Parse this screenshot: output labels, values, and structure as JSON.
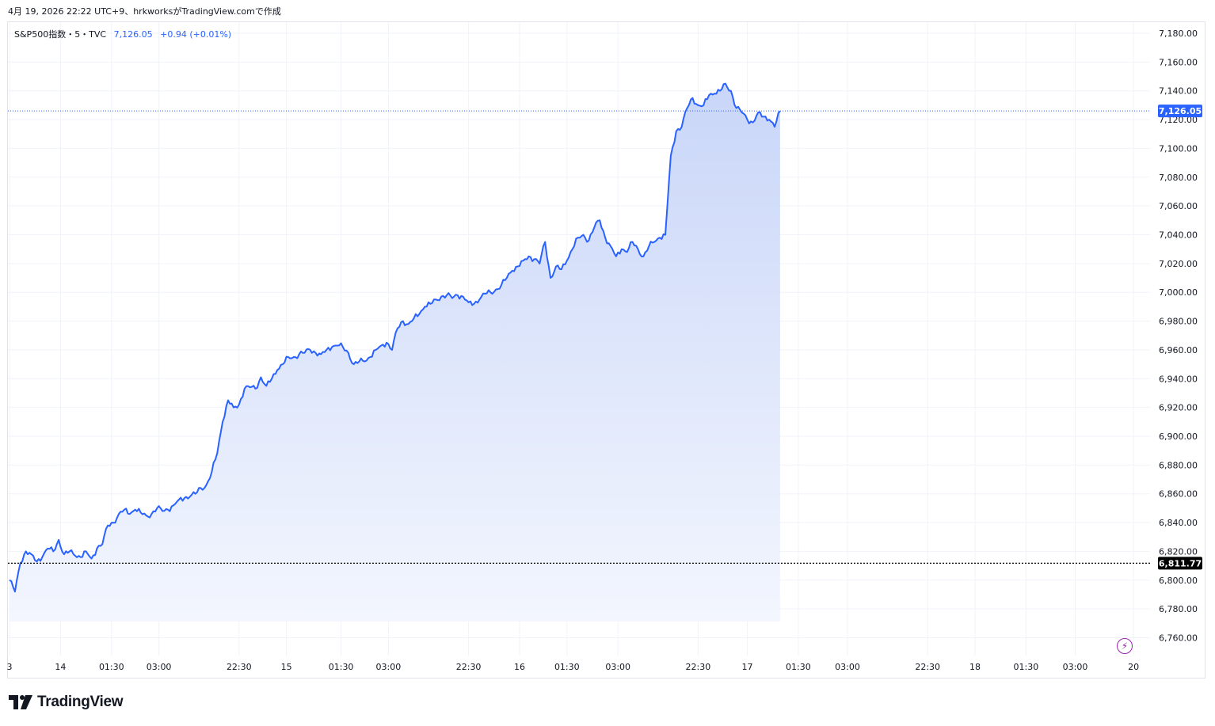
{
  "caption": "4月 19, 2026 22:22 UTC+9、hrkworksがTradingView.comで作成",
  "legend": {
    "symbol": "S&P500指数・5・TVC",
    "price": "7,126.05",
    "change": "+0.94 (+0.01%)"
  },
  "brand": {
    "name": "TradingView",
    "logo_icon": "tradingview-logo-icon"
  },
  "icons": {
    "bolt": "lightning-bolt-icon"
  },
  "colors": {
    "line": "#2962ff",
    "fill_top": "#c9d6f8",
    "fill_bottom": "#f3f6fe",
    "last_price_label": "#2962ff",
    "ref_label": "#000000",
    "grid": "#f0f3fa",
    "bolt": "#9c27b0"
  },
  "chart_data": {
    "type": "area",
    "title": "",
    "xlabel": "",
    "ylabel": "",
    "ylim": [
      6755,
      7186
    ],
    "y_ticks": [
      "7,180.00",
      "7,160.00",
      "7,140.00",
      "7,120.00",
      "7,100.00",
      "7,080.00",
      "7,060.00",
      "7,040.00",
      "7,020.00",
      "7,000.00",
      "6,980.00",
      "6,960.00",
      "6,940.00",
      "6,920.00",
      "6,900.00",
      "6,880.00",
      "6,860.00",
      "6,840.00",
      "6,820.00",
      "6,800.00",
      "6,780.00",
      "6,760.00"
    ],
    "y_tick_values": [
      7180,
      7160,
      7140,
      7120,
      7100,
      7080,
      7060,
      7040,
      7020,
      7000,
      6980,
      6960,
      6940,
      6920,
      6900,
      6880,
      6860,
      6840,
      6820,
      6800,
      6780,
      6760
    ],
    "x_ticks": [
      "3",
      "14",
      "01:30",
      "03:00",
      "22:30",
      "15",
      "01:30",
      "03:00",
      "22:30",
      "16",
      "01:30",
      "03:00",
      "22:30",
      "17",
      "01:30",
      "03:00",
      "22:30",
      "18",
      "01:30",
      "03:00",
      "20"
    ],
    "x_tick_index": [
      0,
      28,
      56,
      82,
      126,
      152,
      182,
      208,
      252,
      280,
      306,
      334,
      378,
      405,
      433,
      460,
      504,
      530,
      558,
      585,
      617
    ],
    "last_price": 7126.05,
    "last_price_label": "7,126.05",
    "reference_price": 6811.77,
    "reference_label": "6,811.77",
    "grid": true,
    "series": [
      {
        "anchors": [
          [
            0,
            6800
          ],
          [
            3,
            6792
          ],
          [
            6,
            6812
          ],
          [
            9,
            6820
          ],
          [
            12,
            6818
          ],
          [
            15,
            6813
          ],
          [
            18,
            6816
          ],
          [
            21,
            6822
          ],
          [
            24,
            6820
          ],
          [
            27,
            6828
          ],
          [
            30,
            6818
          ],
          [
            33,
            6820
          ],
          [
            36,
            6817
          ],
          [
            39,
            6816
          ],
          [
            42,
            6820
          ],
          [
            45,
            6815
          ],
          [
            48,
            6822
          ],
          [
            51,
            6825
          ],
          [
            54,
            6838
          ],
          [
            57,
            6840
          ],
          [
            60,
            6846
          ],
          [
            63,
            6849
          ],
          [
            66,
            6846
          ],
          [
            69,
            6849
          ],
          [
            72,
            6847
          ],
          [
            75,
            6845
          ],
          [
            78,
            6846
          ],
          [
            81,
            6850
          ],
          [
            84,
            6848
          ],
          [
            87,
            6849
          ],
          [
            90,
            6852
          ],
          [
            93,
            6856
          ],
          [
            96,
            6857
          ],
          [
            99,
            6858
          ],
          [
            102,
            6860
          ],
          [
            105,
            6864
          ],
          [
            108,
            6866
          ],
          [
            111,
            6875
          ],
          [
            114,
            6888
          ],
          [
            117,
            6910
          ],
          [
            120,
            6925
          ],
          [
            123,
            6920
          ],
          [
            126,
            6922
          ],
          [
            129,
            6933
          ],
          [
            132,
            6934
          ],
          [
            135,
            6933
          ],
          [
            138,
            6941
          ],
          [
            141,
            6935
          ],
          [
            144,
            6940
          ],
          [
            147,
            6946
          ],
          [
            150,
            6950
          ],
          [
            153,
            6955
          ],
          [
            156,
            6955
          ],
          [
            159,
            6957
          ],
          [
            162,
            6958
          ],
          [
            165,
            6960
          ],
          [
            168,
            6958
          ],
          [
            171,
            6957
          ],
          [
            174,
            6960
          ],
          [
            177,
            6962
          ],
          [
            180,
            6963
          ],
          [
            183,
            6962
          ],
          [
            186,
            6958
          ],
          [
            189,
            6950
          ],
          [
            192,
            6952
          ],
          [
            195,
            6952
          ],
          [
            198,
            6955
          ],
          [
            201,
            6960
          ],
          [
            204,
            6963
          ],
          [
            207,
            6965
          ],
          [
            210,
            6960
          ],
          [
            213,
            6975
          ],
          [
            216,
            6980
          ],
          [
            219,
            6978
          ],
          [
            222,
            6982
          ],
          [
            225,
            6985
          ],
          [
            228,
            6990
          ],
          [
            231,
            6992
          ],
          [
            234,
            6995
          ],
          [
            237,
            6997
          ],
          [
            240,
            6998
          ],
          [
            243,
            6996
          ],
          [
            246,
            6998
          ],
          [
            249,
            6997
          ],
          [
            252,
            6993
          ],
          [
            255,
            6992
          ],
          [
            258,
            6995
          ],
          [
            261,
            6999
          ],
          [
            264,
            7000
          ],
          [
            267,
            7002
          ],
          [
            270,
            7005
          ],
          [
            273,
            7010
          ],
          [
            276,
            7015
          ],
          [
            279,
            7018
          ],
          [
            282,
            7022
          ],
          [
            285,
            7025
          ],
          [
            288,
            7023
          ],
          [
            291,
            7020
          ],
          [
            294,
            7035
          ],
          [
            297,
            7010
          ],
          [
            300,
            7018
          ],
          [
            303,
            7016
          ],
          [
            306,
            7022
          ],
          [
            309,
            7030
          ],
          [
            312,
            7038
          ],
          [
            315,
            7040
          ],
          [
            318,
            7036
          ],
          [
            321,
            7045
          ],
          [
            324,
            7050
          ],
          [
            327,
            7038
          ],
          [
            330,
            7032
          ],
          [
            333,
            7025
          ],
          [
            336,
            7030
          ],
          [
            339,
            7028
          ],
          [
            342,
            7035
          ],
          [
            345,
            7030
          ],
          [
            348,
            7025
          ],
          [
            351,
            7032
          ],
          [
            354,
            7035
          ],
          [
            357,
            7038
          ],
          [
            360,
            7040
          ],
          [
            363,
            7095
          ],
          [
            366,
            7112
          ],
          [
            369,
            7115
          ],
          [
            372,
            7128
          ],
          [
            375,
            7135
          ],
          [
            378,
            7130
          ],
          [
            381,
            7130
          ],
          [
            384,
            7137
          ],
          [
            387,
            7138
          ],
          [
            390,
            7140
          ],
          [
            393,
            7145
          ],
          [
            396,
            7140
          ],
          [
            399,
            7128
          ],
          [
            402,
            7125
          ],
          [
            405,
            7120
          ],
          [
            408,
            7118
          ],
          [
            411,
            7125
          ],
          [
            414,
            7122
          ],
          [
            417,
            7120
          ],
          [
            420,
            7115
          ],
          [
            423,
            7126
          ]
        ]
      }
    ]
  }
}
